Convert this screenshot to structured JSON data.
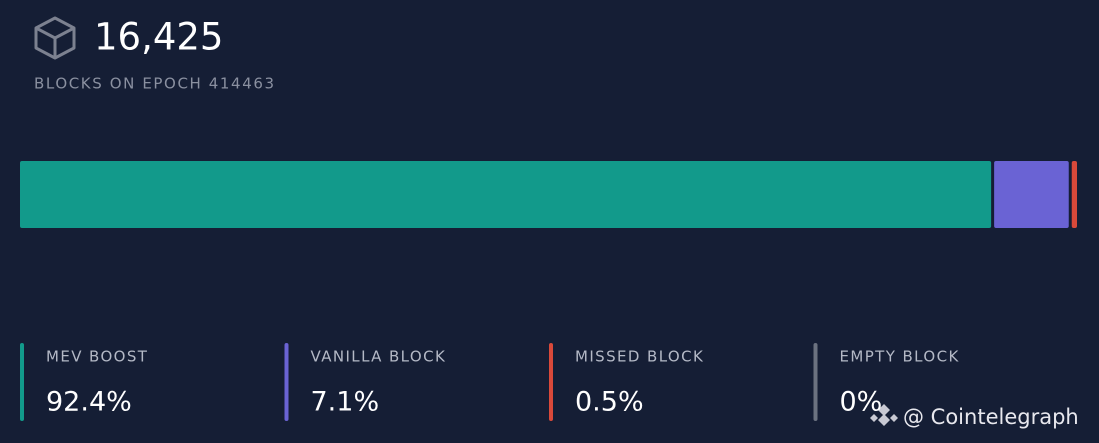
{
  "header": {
    "count": "16,425",
    "label": "BLOCKS ON EPOCH 414463"
  },
  "chart_data": {
    "type": "stacked-bar",
    "series": [
      {
        "name": "MEV BOOST",
        "color": "#129a8b",
        "values": [
          92.4
        ],
        "value_labels": [
          "92.4%"
        ]
      },
      {
        "name": "VANILLA BLOCK",
        "color": "#6a63d4",
        "values": [
          7.1
        ],
        "value_labels": [
          "7.1%"
        ]
      },
      {
        "name": "MISSED BLOCK",
        "color": "#d9493a",
        "values": [
          0.5
        ],
        "value_labels": [
          "0.5%"
        ]
      },
      {
        "name": "EMPTY BLOCK",
        "color": "#6b7280",
        "values": [
          0
        ],
        "value_labels": [
          "0%"
        ]
      }
    ]
  },
  "watermark": "@ Cointelegraph"
}
